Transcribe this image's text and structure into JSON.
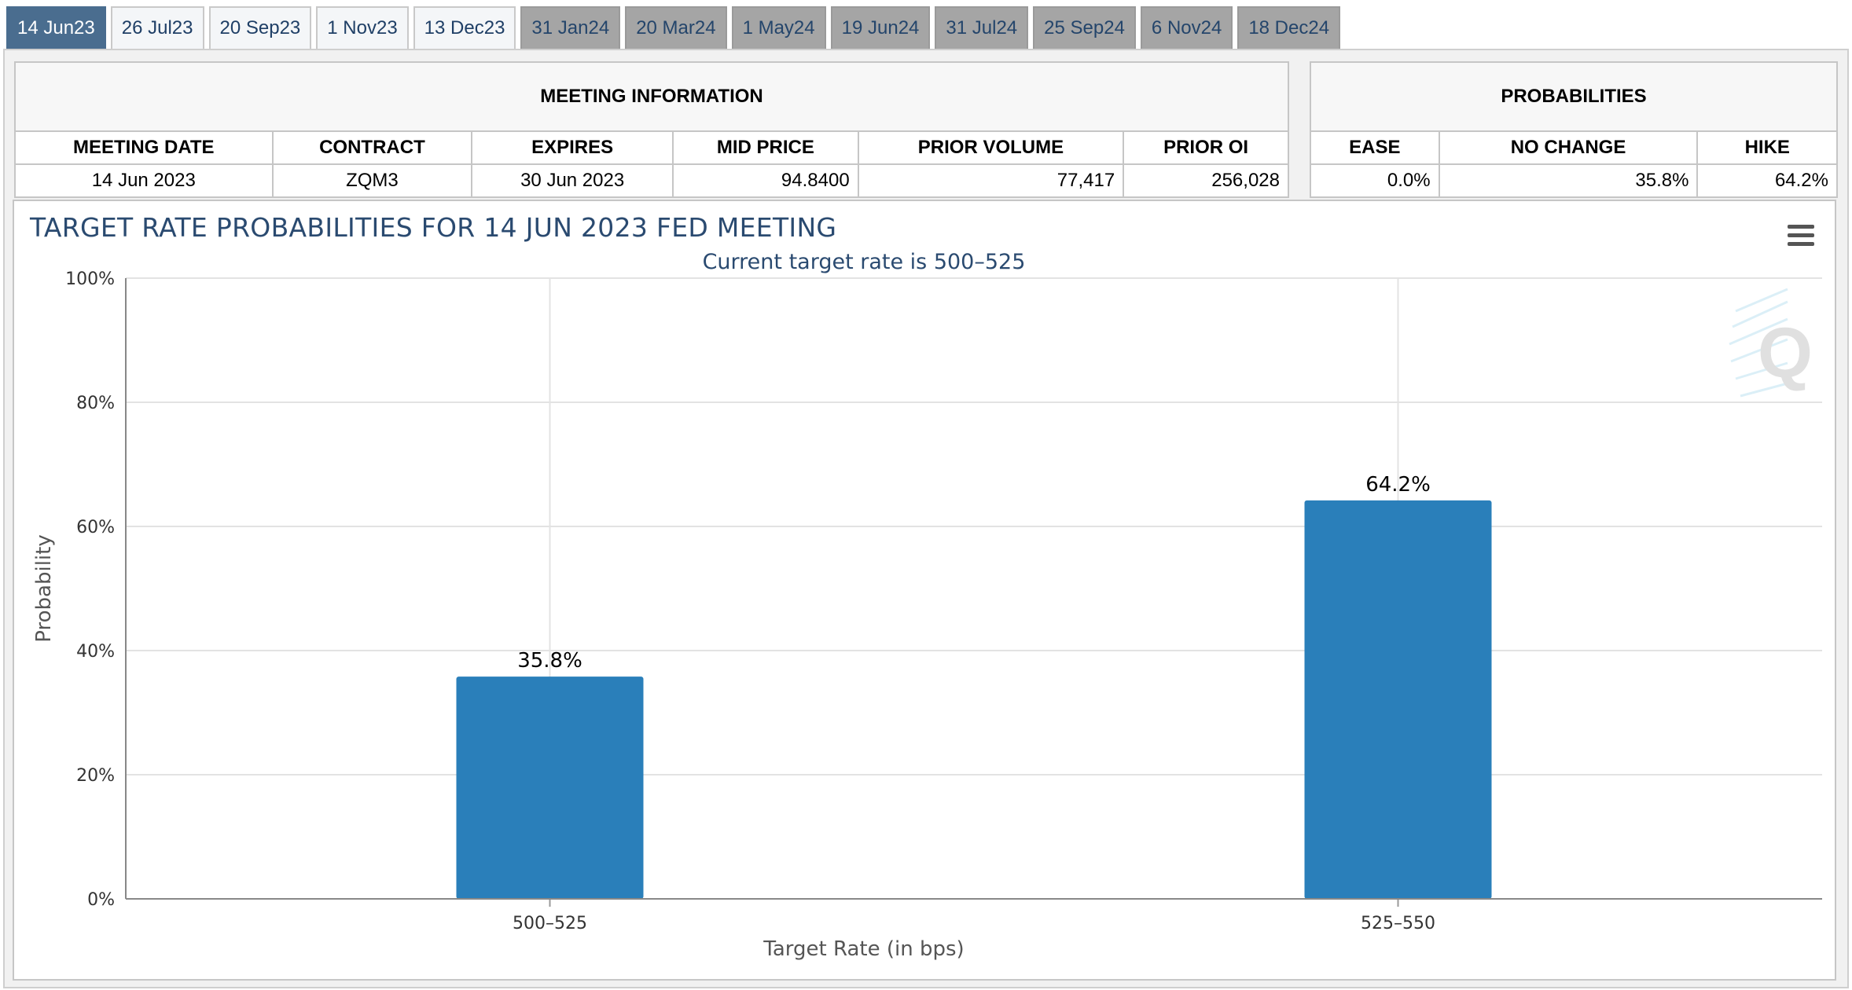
{
  "tabs": [
    {
      "label": "14 Jun23",
      "state": "active"
    },
    {
      "label": "26 Jul23",
      "state": "normal"
    },
    {
      "label": "20 Sep23",
      "state": "normal"
    },
    {
      "label": "1 Nov23",
      "state": "normal"
    },
    {
      "label": "13 Dec23",
      "state": "normal"
    },
    {
      "label": "31 Jan24",
      "state": "future"
    },
    {
      "label": "20 Mar24",
      "state": "future"
    },
    {
      "label": "1 May24",
      "state": "future"
    },
    {
      "label": "19 Jun24",
      "state": "future"
    },
    {
      "label": "31 Jul24",
      "state": "future"
    },
    {
      "label": "25 Sep24",
      "state": "future"
    },
    {
      "label": "6 Nov24",
      "state": "future"
    },
    {
      "label": "18 Dec24",
      "state": "future"
    }
  ],
  "meeting_info": {
    "caption": "MEETING INFORMATION",
    "headers": [
      "MEETING DATE",
      "CONTRACT",
      "EXPIRES",
      "MID PRICE",
      "PRIOR VOLUME",
      "PRIOR OI"
    ],
    "values": [
      "14 Jun 2023",
      "ZQM3",
      "30 Jun 2023",
      "94.8400",
      "77,417",
      "256,028"
    ]
  },
  "probabilities": {
    "caption": "PROBABILITIES",
    "headers": [
      "EASE",
      "NO CHANGE",
      "HIKE"
    ],
    "values": [
      "0.0%",
      "35.8%",
      "64.2%"
    ]
  },
  "chart_data": {
    "type": "bar",
    "title": "TARGET RATE PROBABILITIES FOR 14 JUN 2023 FED MEETING",
    "subtitle": "Current target rate is 500–525",
    "xlabel": "Target Rate (in bps)",
    "ylabel": "Probability",
    "categories": [
      "500–525",
      "525–550"
    ],
    "values": [
      35.8,
      64.2
    ],
    "data_labels": [
      "35.8%",
      "64.2%"
    ],
    "ylim": [
      0,
      100
    ],
    "yticks": [
      0,
      20,
      40,
      60,
      80,
      100
    ],
    "ytick_labels": [
      "0%",
      "20%",
      "40%",
      "60%",
      "80%",
      "100%"
    ],
    "grid": true,
    "bar_color": "#2a7fba"
  },
  "colors": {
    "active_tab": "#4a6d8f",
    "future_tab": "#a5a5a5",
    "title_color": "#2a4a70"
  }
}
